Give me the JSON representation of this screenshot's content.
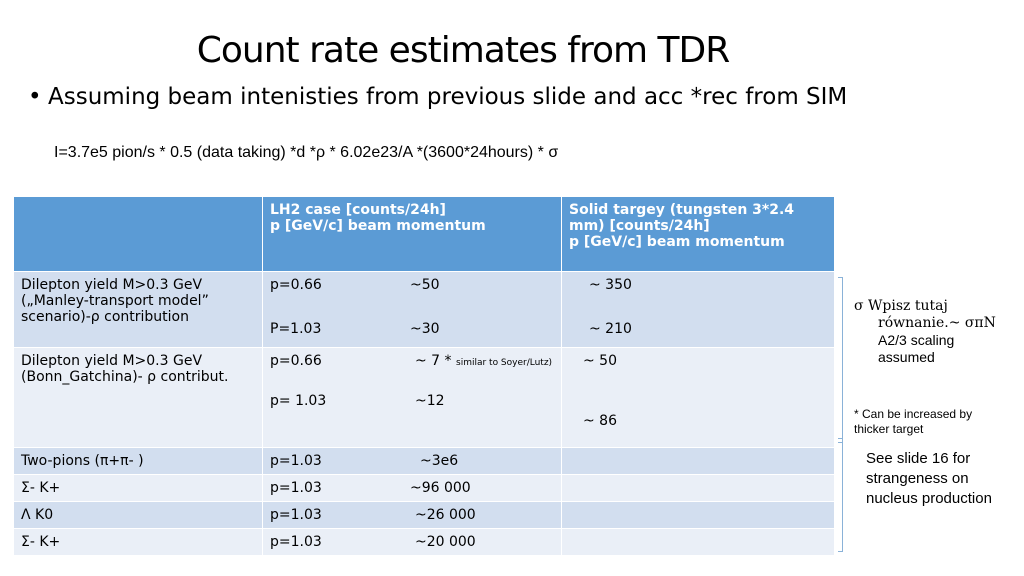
{
  "slide": {
    "title": "Count rate estimates from TDR",
    "bullet": "Assuming beam intenisties from previous slide and acc *rec from SIM",
    "formula": "I=3.7e5 pion/s * 0.5 (data taking) *d *ρ * 6.02e23/A *(3600*24hours) * σ"
  },
  "table": {
    "headers": [
      "",
      "LH2 case  [counts/24h]\np [GeV/c] beam momentum",
      "Solid targey (tungsten 3*2.4 mm)  [counts/24h]\np [GeV/c] beam momentum"
    ],
    "rows": [
      {
        "label": "Dilepton yield M>0.3 GeV („Manley-transport model” scenario)-ρ contribution",
        "p1": "p=0.66",
        "v1": "~50",
        "p2": "P=1.03",
        "v2": "~30",
        "s1": "~ 350",
        "s2": "~ 210"
      },
      {
        "label": "Dilepton yield M>0.3 GeV (Bonn_Gatchina)- ρ contribut.",
        "p1": "p=0.66",
        "v1": "~ 7  *",
        "note": "similar to Soyer/Lutz)",
        "p2": "p= 1.03",
        "v2": "~12",
        "s1": "~ 50",
        "s2": "~ 86"
      },
      {
        "label": "Two-pions (π+π- )",
        "p": "p=1.03",
        "v": "~3e6"
      },
      {
        "label": "Σ- K+",
        "p": "p=1.03",
        "v": "~96 000"
      },
      {
        "label": "Λ K0",
        "p": "p=1.03",
        "v": "~26 000"
      },
      {
        "label": "Σ- K+",
        "p": "p=1.03",
        "v": "~20 000"
      }
    ]
  },
  "side_notes": {
    "sigma_line1": "σ   Wpisz tutaj",
    "sigma_line2": "równanie.~ σπN",
    "sigma_line3": "A2/3  scaling",
    "sigma_line4": "assumed",
    "star_note": "* Can be increased by thicker target",
    "strangeness_note": "See slide 16 for strangeness on nucleus production"
  }
}
